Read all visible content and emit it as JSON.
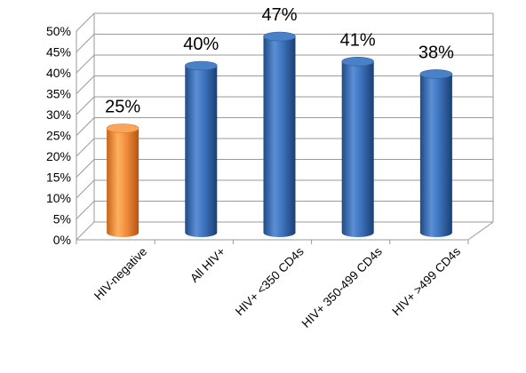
{
  "chart_data": {
    "type": "bar",
    "title": "",
    "xlabel": "",
    "ylabel": "",
    "ylim": [
      0,
      50
    ],
    "yticks": [
      "0%",
      "5%",
      "10%",
      "15%",
      "20%",
      "25%",
      "30%",
      "35%",
      "40%",
      "45%",
      "50%"
    ],
    "categories": [
      "HIV-negative",
      "All HIV+",
      "HIV+ <350 CD4s",
      "HIV+ 350-499 CD4s",
      "HIV+ >499 CD4s"
    ],
    "values": [
      25,
      40,
      47,
      41,
      38
    ],
    "data_labels": [
      "25%",
      "40%",
      "47%",
      "41%",
      "38%"
    ],
    "colors": [
      "#f28e3d",
      "#3a6fb8",
      "#3a6fb8",
      "#3a6fb8",
      "#3a6fb8"
    ],
    "grid": true,
    "style": "3d-cylinder"
  }
}
